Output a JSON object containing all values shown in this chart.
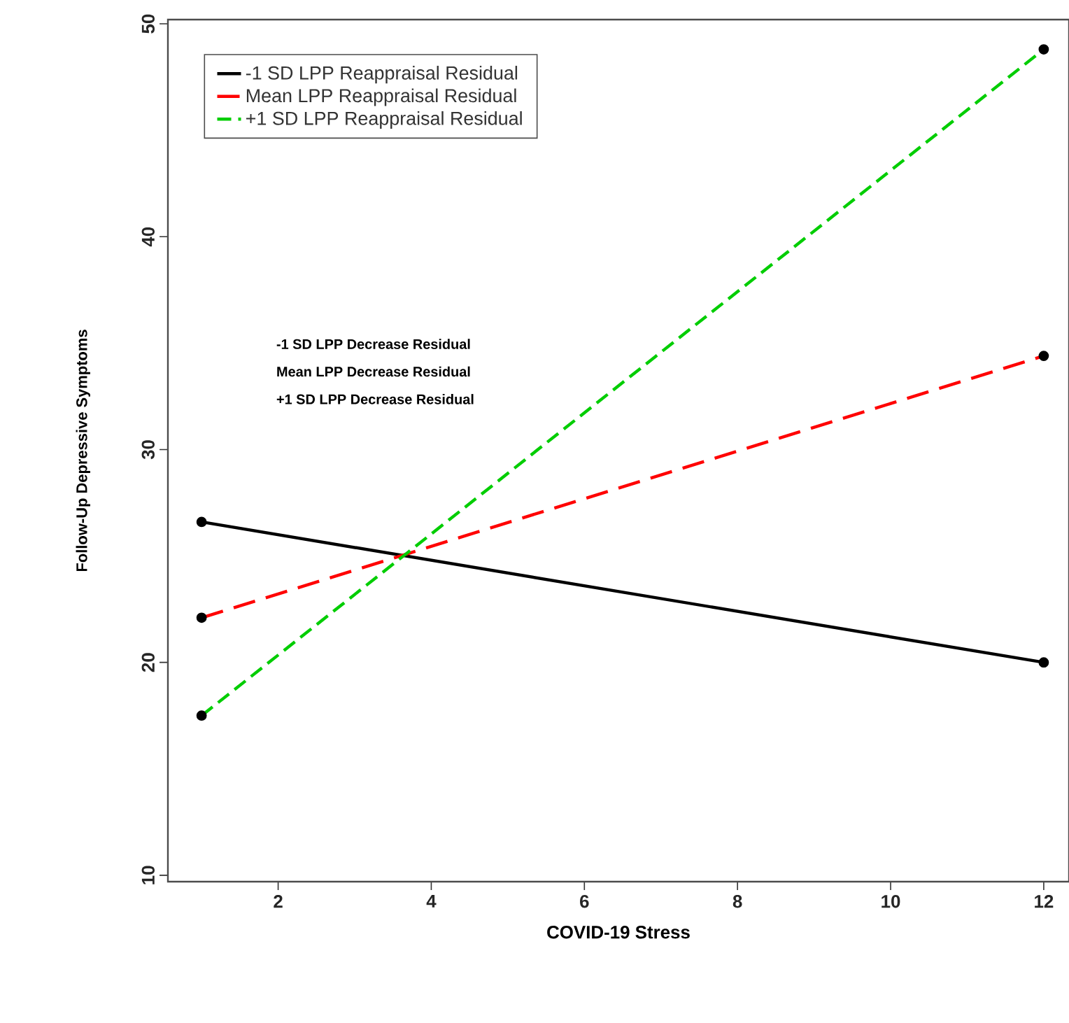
{
  "chart_data": {
    "type": "line",
    "xlabel": "COVID-19 Stress",
    "ylabel": "Follow-Up Depressive Symptoms",
    "x": [
      1,
      12
    ],
    "series": [
      {
        "name": "-1 SD LPP Reappraisal Residual",
        "color": "#000000",
        "values": [
          26.6,
          20.0
        ],
        "line_style": "solid"
      },
      {
        "name": "Mean LPP Reappraisal Residual",
        "color": "#ff0000",
        "values": [
          22.1,
          34.4
        ],
        "line_style": "dashed"
      },
      {
        "name": "+1 SD LPP Reappraisal Residual",
        "color": "#00cd00",
        "values": [
          17.5,
          48.8
        ],
        "line_style": "dashed"
      }
    ],
    "annotations": [
      "-1 SD LPP Decrease Residual",
      "Mean LPP Decrease Residual",
      "+1 SD LPP Decrease Residual"
    ],
    "xlim": [
      0.56,
      12.33
    ],
    "ylim": [
      9.7,
      50.2
    ],
    "xticks": [
      2,
      4,
      6,
      8,
      10,
      12
    ],
    "yticks": [
      10,
      20,
      30,
      40,
      50
    ],
    "marker": "circle",
    "grid": false,
    "legend": "top left"
  }
}
